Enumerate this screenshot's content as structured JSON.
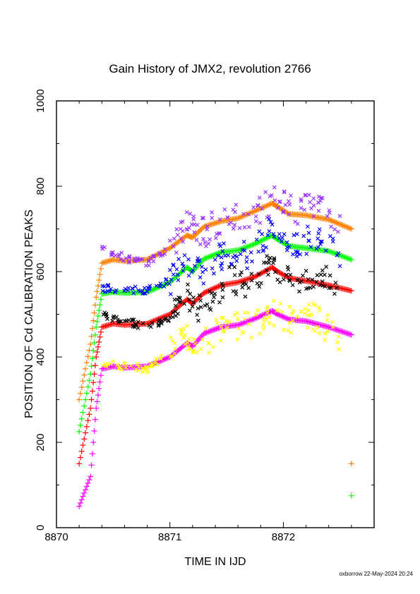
{
  "chart_data": {
    "type": "scatter",
    "title": "Gain History of JMX2, revolution 2766",
    "xlabel": "TIME IN IJD",
    "ylabel": "POSITION OF Cd CALIBRATION PEAKS",
    "xlim": [
      8870,
      8872.8
    ],
    "ylim": [
      0,
      1000
    ],
    "xticks": [
      "8870",
      "8871",
      "8872"
    ],
    "yticks": [
      "0",
      "200",
      "400",
      "600",
      "800",
      "1000"
    ],
    "grid": false,
    "legend": "none",
    "series": [
      {
        "color": "#ff8000",
        "marker": "plus",
        "x": [
          8870.2,
          8870.3,
          8870.35,
          8870.4,
          8870.5,
          8870.6,
          8870.8,
          8871.0,
          8871.15,
          8871.2,
          8871.3,
          8871.45,
          8871.6,
          8871.75,
          8871.9,
          8871.95,
          8872.05,
          8872.2,
          8872.4,
          8872.6
        ],
        "values": [
          300,
          430,
          540,
          620,
          628,
          625,
          628,
          655,
          685,
          680,
          705,
          718,
          725,
          742,
          760,
          752,
          735,
          732,
          722,
          700
        ]
      },
      {
        "color": "#9933ff",
        "marker": "cross",
        "x": [
          8870.4,
          8870.6,
          8870.8,
          8871.0,
          8871.15,
          8871.3,
          8871.5,
          8871.7,
          8871.9,
          8872.1,
          8872.3,
          8872.5
        ],
        "values": [
          660,
          632,
          620,
          650,
          710,
          690,
          735,
          730,
          770,
          740,
          760,
          710
        ]
      },
      {
        "color": "#00ff00",
        "marker": "plus",
        "x": [
          8870.2,
          8870.3,
          8870.35,
          8870.4,
          8870.5,
          8870.6,
          8870.8,
          8871.0,
          8871.15,
          8871.2,
          8871.3,
          8871.45,
          8871.6,
          8871.75,
          8871.9,
          8871.95,
          8872.05,
          8872.2,
          8872.4,
          8872.6
        ],
        "values": [
          225,
          360,
          470,
          548,
          552,
          550,
          552,
          575,
          610,
          600,
          630,
          645,
          650,
          665,
          685,
          675,
          660,
          655,
          648,
          628
        ]
      },
      {
        "color": "#0000ff",
        "marker": "cross",
        "x": [
          8870.4,
          8870.6,
          8870.8,
          8871.0,
          8871.15,
          8871.3,
          8871.5,
          8871.7,
          8871.9,
          8872.1,
          8872.3,
          8872.5
        ],
        "values": [
          560,
          560,
          555,
          580,
          625,
          600,
          650,
          640,
          700,
          660,
          680,
          630
        ]
      },
      {
        "color": "#ff0000",
        "marker": "plus",
        "x": [
          8870.2,
          8870.3,
          8870.35,
          8870.4,
          8870.5,
          8870.6,
          8870.8,
          8871.0,
          8871.15,
          8871.2,
          8871.3,
          8871.45,
          8871.6,
          8871.75,
          8871.9,
          8871.95,
          8872.05,
          8872.2,
          8872.4,
          8872.6
        ],
        "values": [
          150,
          280,
          400,
          470,
          478,
          475,
          478,
          500,
          535,
          525,
          550,
          568,
          575,
          588,
          610,
          600,
          585,
          578,
          568,
          555
        ]
      },
      {
        "color": "#000000",
        "marker": "cross",
        "x": [
          8870.4,
          8870.6,
          8870.8,
          8871.0,
          8871.15,
          8871.3,
          8871.5,
          8871.7,
          8871.9,
          8872.1,
          8872.3,
          8872.5
        ],
        "values": [
          500,
          485,
          470,
          490,
          540,
          510,
          580,
          570,
          620,
          580,
          600,
          550
        ]
      },
      {
        "color": "#ff00ff",
        "marker": "plus",
        "x": [
          8870.2,
          8870.3,
          8870.35,
          8870.4,
          8870.5,
          8870.6,
          8870.8,
          8871.0,
          8871.15,
          8871.2,
          8871.3,
          8871.45,
          8871.6,
          8871.75,
          8871.9,
          8871.95,
          8872.05,
          8872.2,
          8872.4,
          8872.6
        ],
        "values": [
          50,
          120,
          280,
          372,
          378,
          375,
          378,
          400,
          432,
          425,
          455,
          470,
          475,
          490,
          508,
          500,
          488,
          484,
          470,
          452
        ]
      },
      {
        "color": "#ffff00",
        "marker": "cross",
        "x": [
          8870.4,
          8870.6,
          8870.8,
          8871.0,
          8871.15,
          8871.3,
          8871.5,
          8871.7,
          8871.9,
          8872.1,
          8872.3,
          8872.5
        ],
        "values": [
          385,
          378,
          372,
          410,
          445,
          430,
          480,
          470,
          510,
          480,
          495,
          430
        ]
      }
    ],
    "outliers": [
      {
        "color": "#ff8000",
        "marker": "plus",
        "x": 8872.6,
        "y": 150
      },
      {
        "color": "#00ff00",
        "marker": "plus",
        "x": 8872.6,
        "y": 75
      }
    ]
  },
  "footer": "oxborrow 22-May-2024 20:24"
}
